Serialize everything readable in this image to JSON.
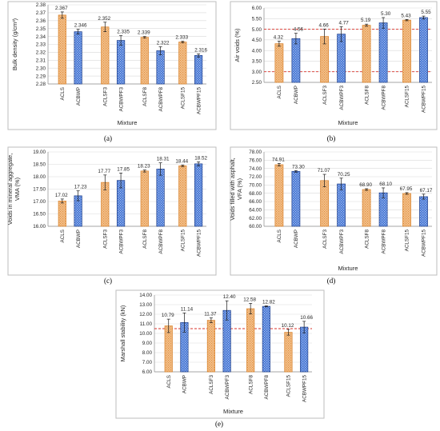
{
  "chart_data": [
    {
      "panel": "(a)",
      "type": "bar",
      "ylabel": "Bulk density (g/cm³)",
      "xlabel": "Mixture",
      "ylim": [
        2.28,
        2.38
      ],
      "yticks": [
        "2.28",
        "2.29",
        "2.30",
        "2.31",
        "2.32",
        "2.33",
        "2.34",
        "2.35",
        "2.36",
        "2.37",
        "2.38"
      ],
      "grid": true,
      "bars": [
        {
          "category": "ACLS",
          "value": 2.367,
          "label": "2.367",
          "error": 0.004,
          "style": "orange"
        },
        {
          "category": "ACBWP",
          "value": 2.346,
          "label": "2.346",
          "error": 0.003,
          "style": "blue"
        },
        {
          "category": "ACLSF3",
          "value": 2.352,
          "label": "2.352",
          "error": 0.006,
          "style": "orange"
        },
        {
          "category": "ACBWPF3",
          "value": 2.335,
          "label": "2.335",
          "error": 0.006,
          "style": "blue"
        },
        {
          "category": "ACLSF8",
          "value": 2.339,
          "label": "2.339",
          "error": 0.001,
          "style": "orange"
        },
        {
          "category": "ACBWPF8",
          "value": 2.322,
          "label": "2.322",
          "error": 0.005,
          "style": "blue"
        },
        {
          "category": "ACLSF15",
          "value": 2.333,
          "label": "2.333",
          "error": 0.001,
          "style": "orange"
        },
        {
          "category": "ACBWPF15",
          "value": 2.316,
          "label": "2.316",
          "error": 0.002,
          "style": "blue"
        }
      ]
    },
    {
      "panel": "(b)",
      "type": "bar",
      "ylabel": "Air voids (%)",
      "xlabel": "Mixture",
      "ylim": [
        2.5,
        6.0
      ],
      "yticks": [
        "2.50",
        "3.00",
        "3.50",
        "4.00",
        "4.50",
        "5.00",
        "5.50",
        "6.00"
      ],
      "grid": true,
      "ref_lines": [
        3.0,
        5.0
      ],
      "bars": [
        {
          "category": "ACLS",
          "value": 4.32,
          "label": "4.32",
          "error": 0.12,
          "style": "orange"
        },
        {
          "category": "ACBWP",
          "value": 4.56,
          "label": "4.56",
          "error": 0.25,
          "style": "blue"
        },
        {
          "category": "ACLSF3",
          "value": 4.66,
          "label": "4.66",
          "error": 0.35,
          "style": "orange"
        },
        {
          "category": "ACBWPF3",
          "value": 4.77,
          "label": "4.77",
          "error": 0.35,
          "style": "blue"
        },
        {
          "category": "ACLSF8",
          "value": 5.19,
          "label": "5.19",
          "error": 0.05,
          "style": "orange"
        },
        {
          "category": "ACBWPF8",
          "value": 5.3,
          "label": "5.30",
          "error": 0.25,
          "style": "blue"
        },
        {
          "category": "ACLSF15",
          "value": 5.43,
          "label": "5.43",
          "error": 0.03,
          "style": "orange"
        },
        {
          "category": "ACBWPF15",
          "value": 5.55,
          "label": "5.55",
          "error": 0.07,
          "style": "blue"
        }
      ]
    },
    {
      "panel": "(c)",
      "type": "bar",
      "ylabel": "Voids in mineral aggregate, VMA (%)",
      "xlabel": "",
      "ylim": [
        16.0,
        19.0
      ],
      "yticks": [
        "16.00",
        "16.50",
        "17.00",
        "17.50",
        "18.00",
        "18.50",
        "19.00"
      ],
      "grid": true,
      "bars": [
        {
          "category": "ACLS",
          "value": 17.02,
          "label": "17.02",
          "error": 0.08,
          "style": "orange"
        },
        {
          "category": "ACBWP",
          "value": 17.23,
          "label": "17.23",
          "error": 0.2,
          "style": "blue"
        },
        {
          "category": "ACLSF3",
          "value": 17.77,
          "label": "17.77",
          "error": 0.3,
          "style": "orange"
        },
        {
          "category": "ACBWPF3",
          "value": 17.85,
          "label": "17.85",
          "error": 0.3,
          "style": "blue"
        },
        {
          "category": "ACLSF8",
          "value": 18.23,
          "label": "18.23",
          "error": 0.04,
          "style": "orange"
        },
        {
          "category": "ACBWPF8",
          "value": 18.31,
          "label": "18.31",
          "error": 0.25,
          "style": "blue"
        },
        {
          "category": "ACLSF15",
          "value": 18.44,
          "label": "18.44",
          "error": 0.03,
          "style": "orange"
        },
        {
          "category": "ACBWPF15",
          "value": 18.52,
          "label": "18.52",
          "error": 0.08,
          "style": "blue"
        }
      ]
    },
    {
      "panel": "(d)",
      "type": "bar",
      "ylabel": "Voids filled with asphalt, VFA (%)",
      "xlabel": "Mixture",
      "ylim": [
        60.0,
        78.0
      ],
      "yticks": [
        "60.00",
        "62.00",
        "64.00",
        "66.00",
        "68.00",
        "70.00",
        "72.00",
        "74.00",
        "76.00",
        "78.00"
      ],
      "grid": true,
      "bars": [
        {
          "category": "ACLS",
          "value": 74.91,
          "label": "74.91",
          "error": 0.3,
          "style": "orange"
        },
        {
          "category": "ACBWP",
          "value": 73.3,
          "label": "73.30",
          "error": 0.2,
          "style": "blue"
        },
        {
          "category": "ACLSF3",
          "value": 71.07,
          "label": "71.07",
          "error": 1.5,
          "style": "orange"
        },
        {
          "category": "ACBWPF3",
          "value": 70.25,
          "label": "70.25",
          "error": 1.4,
          "style": "blue"
        },
        {
          "category": "ACLSF8",
          "value": 68.9,
          "label": "68.90",
          "error": 0.2,
          "style": "orange"
        },
        {
          "category": "ACBWPF8",
          "value": 68.1,
          "label": "68.10",
          "error": 1.2,
          "style": "blue"
        },
        {
          "category": "ACLSF15",
          "value": 67.95,
          "label": "67.95",
          "error": 0.2,
          "style": "orange"
        },
        {
          "category": "ACBWPF15",
          "value": 67.17,
          "label": "67.17",
          "error": 0.6,
          "style": "blue"
        }
      ]
    },
    {
      "panel": "(e)",
      "type": "bar",
      "ylabel": "Marshall stability (kN)",
      "xlabel": "Mixture",
      "ylim": [
        6.0,
        14.0
      ],
      "yticks": [
        "6.00",
        "7.00",
        "8.00",
        "9.00",
        "10.00",
        "11.00",
        "12.00",
        "13.00",
        "14.00"
      ],
      "grid": true,
      "ref_lines": [
        10.5
      ],
      "bars": [
        {
          "category": "ACLS",
          "value": 10.79,
          "label": "10.79",
          "error": 0.7,
          "style": "orange"
        },
        {
          "category": "ACBWP",
          "value": 11.14,
          "label": "11.14",
          "error": 1.0,
          "style": "blue"
        },
        {
          "category": "ACLSF3",
          "value": 11.37,
          "label": "11.37",
          "error": 0.25,
          "style": "orange"
        },
        {
          "category": "ACBWPF3",
          "value": 12.4,
          "label": "12.40",
          "error": 1.0,
          "style": "blue"
        },
        {
          "category": "ACLSF8",
          "value": 12.58,
          "label": "12.58",
          "error": 0.55,
          "style": "orange"
        },
        {
          "category": "ACBWPF8",
          "value": 12.82,
          "label": "12.82",
          "error": 0.05,
          "style": "blue"
        },
        {
          "category": "ACLSF15",
          "value": 10.12,
          "label": "10.12",
          "error": 0.3,
          "style": "orange"
        },
        {
          "category": "ACBWPF15",
          "value": 10.66,
          "label": "10.66",
          "error": 0.6,
          "style": "blue"
        }
      ]
    }
  ],
  "colors": {
    "orange_fill": "#f4c28f",
    "orange_stroke": "#d9822b",
    "blue_fill": "#3d6fd1",
    "blue_stroke": "#1f3f8a",
    "grid": "#d9d9d9",
    "reference_line": "#d9332b"
  }
}
